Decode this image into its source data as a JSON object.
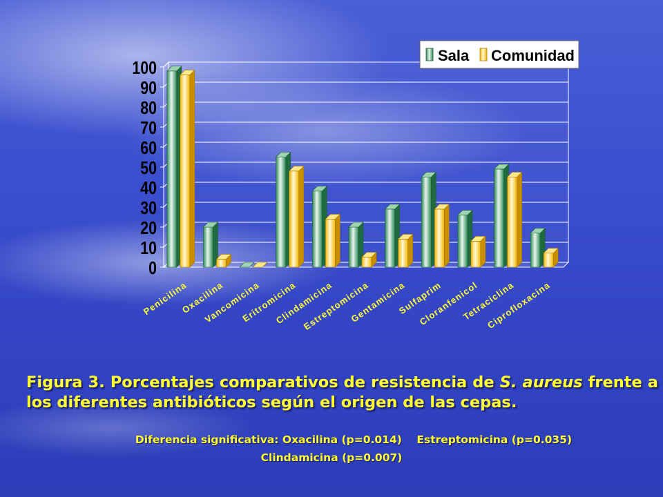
{
  "chart_data": {
    "type": "bar",
    "categories": [
      "Penicilina",
      "Oxacilina",
      "Vancomicina",
      "Eritromicina",
      "Clindamicina",
      "Estreptomicina",
      "Gentamicina",
      "Sulfaprim",
      "Cloranfenicol",
      "Tetraciclina",
      "Ciprofloxacina"
    ],
    "series": [
      {
        "name": "Sala",
        "values": [
          98,
          20,
          0,
          55,
          38,
          20,
          29,
          45,
          26,
          49,
          17
        ]
      },
      {
        "name": "Comunidad",
        "values": [
          96,
          4,
          0,
          48,
          24,
          5,
          14,
          29,
          13,
          45,
          7
        ]
      }
    ],
    "ylim": [
      0,
      100
    ],
    "yticks": [
      "0",
      "10",
      "20",
      "30",
      "40",
      "50",
      "60",
      "70",
      "80",
      "90",
      "100"
    ],
    "legend_position": "top-right",
    "grid": true
  },
  "colors": {
    "sala": "#2e8b57",
    "comunidad": "#ffc819"
  },
  "caption": {
    "figure": "Figura 3.",
    "text_before": "Porcentajes comparativos de resistencia de",
    "species": "S. aureus",
    "text_after": "frente a los diferentes antibióticos según el origen de las cepas."
  },
  "note": {
    "line1": "Diferencia significativa: Oxacilina (p=0.014)    Estreptomicina (p=0.035)",
    "line2": "Clindamicina (p=0.007)"
  }
}
